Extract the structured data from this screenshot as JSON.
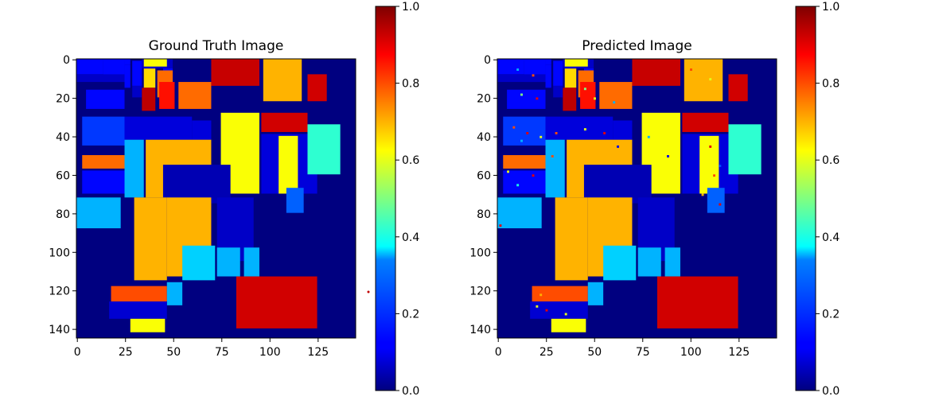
{
  "chart_data": [
    {
      "type": "heatmap",
      "title": "Ground Truth Image",
      "xlabel": "",
      "ylabel": "",
      "xlim": [
        0,
        145
      ],
      "ylim": [
        145,
        0
      ],
      "x_ticks": [
        0,
        25,
        50,
        75,
        100,
        125
      ],
      "y_ticks": [
        0,
        20,
        40,
        60,
        80,
        100,
        120,
        140
      ],
      "colormap": "jet",
      "background_value": 0.0,
      "regions": [
        {
          "x": [
            0,
            14
          ],
          "y": [
            0,
            8
          ],
          "value": 0.13
        },
        {
          "x": [
            14,
            25
          ],
          "y": [
            0,
            12
          ],
          "value": 0.13
        },
        {
          "x": [
            25,
            28
          ],
          "y": [
            0,
            3
          ],
          "value": 0.13
        },
        {
          "x": [
            0,
            25
          ],
          "y": [
            8,
            12
          ],
          "value": 0.07
        },
        {
          "x": [
            25,
            28
          ],
          "y": [
            3,
            15
          ],
          "value": 0.13
        },
        {
          "x": [
            29,
            34
          ],
          "y": [
            1,
            14
          ],
          "value": 0.13
        },
        {
          "x": [
            29,
            34
          ],
          "y": [
            14,
            20
          ],
          "value": 0.07
        },
        {
          "x": [
            35,
            41
          ],
          "y": [
            5,
            15
          ],
          "value": 0.66
        },
        {
          "x": [
            34,
            41
          ],
          "y": [
            15,
            27
          ],
          "value": 0.94
        },
        {
          "x": [
            45,
            50
          ],
          "y": [
            0,
            10
          ],
          "value": 0.13
        },
        {
          "x": [
            34,
            50
          ],
          "y": [
            0,
            5
          ],
          "value": 0.07
        },
        {
          "x": [
            35,
            47
          ],
          "y": [
            0,
            4
          ],
          "value": 0.62
        },
        {
          "x": [
            42,
            50
          ],
          "y": [
            6,
            20
          ],
          "value": 0.77
        },
        {
          "x": [
            43,
            51
          ],
          "y": [
            12,
            26
          ],
          "value": 0.86
        },
        {
          "x": [
            53,
            70
          ],
          "y": [
            12,
            26
          ],
          "value": 0.77
        },
        {
          "x": [
            70,
            95
          ],
          "y": [
            0,
            14
          ],
          "value": 0.93
        },
        {
          "x": [
            97,
            117
          ],
          "y": [
            0,
            22
          ],
          "value": 0.7
        },
        {
          "x": [
            120,
            130
          ],
          "y": [
            8,
            22
          ],
          "value": 0.92
        },
        {
          "x": [
            5,
            25
          ],
          "y": [
            16,
            26
          ],
          "value": 0.13
        },
        {
          "x": [
            3,
            25
          ],
          "y": [
            30,
            45
          ],
          "value": 0.18
        },
        {
          "x": [
            25,
            60
          ],
          "y": [
            30,
            42
          ],
          "value": 0.09
        },
        {
          "x": [
            60,
            70
          ],
          "y": [
            32,
            42
          ],
          "value": 0.09
        },
        {
          "x": [
            75,
            95
          ],
          "y": [
            28,
            70
          ],
          "value": 0.62
        },
        {
          "x": [
            96,
            120
          ],
          "y": [
            28,
            38
          ],
          "value": 0.92
        },
        {
          "x": [
            96,
            125
          ],
          "y": [
            39,
            70
          ],
          "value": 0.09
        },
        {
          "x": [
            105,
            115
          ],
          "y": [
            40,
            70
          ],
          "value": 0.62
        },
        {
          "x": [
            120,
            137
          ],
          "y": [
            34,
            60
          ],
          "value": 0.42
        },
        {
          "x": [
            3,
            25
          ],
          "y": [
            50,
            57
          ],
          "value": 0.77
        },
        {
          "x": [
            3,
            25
          ],
          "y": [
            58,
            70
          ],
          "value": 0.13
        },
        {
          "x": [
            25,
            35
          ],
          "y": [
            42,
            72
          ],
          "value": 0.3
        },
        {
          "x": [
            36,
            70
          ],
          "y": [
            42,
            72
          ],
          "value": 0.7
        },
        {
          "x": [
            45,
            80
          ],
          "y": [
            55,
            75
          ],
          "value": 0.05
        },
        {
          "x": [
            30,
            47
          ],
          "y": [
            72,
            115
          ],
          "value": 0.7
        },
        {
          "x": [
            47,
            70
          ],
          "y": [
            72,
            113
          ],
          "value": 0.7
        },
        {
          "x": [
            73,
            92
          ],
          "y": [
            72,
            105
          ],
          "value": 0.07
        },
        {
          "x": [
            0,
            23
          ],
          "y": [
            72,
            88
          ],
          "value": 0.3
        },
        {
          "x": [
            109,
            118
          ],
          "y": [
            67,
            80
          ],
          "value": 0.22
        },
        {
          "x": [
            55,
            72
          ],
          "y": [
            97,
            115
          ],
          "value": 0.33
        },
        {
          "x": [
            73,
            85
          ],
          "y": [
            98,
            113
          ],
          "value": 0.3
        },
        {
          "x": [
            87,
            95
          ],
          "y": [
            98,
            113
          ],
          "value": 0.3
        },
        {
          "x": [
            18,
            47
          ],
          "y": [
            118,
            126
          ],
          "value": 0.8
        },
        {
          "x": [
            47,
            55
          ],
          "y": [
            116,
            128
          ],
          "value": 0.3
        },
        {
          "x": [
            17,
            47
          ],
          "y": [
            126,
            135
          ],
          "value": 0.08
        },
        {
          "x": [
            28,
            46
          ],
          "y": [
            135,
            142
          ],
          "value": 0.62
        },
        {
          "x": [
            83,
            125
          ],
          "y": [
            113,
            140
          ],
          "value": 0.92
        }
      ],
      "colorbar": {
        "range": [
          0.0,
          1.0
        ],
        "ticks": [
          0.0,
          0.2,
          0.4,
          0.6,
          0.8,
          1.0
        ]
      }
    },
    {
      "type": "heatmap",
      "title": "Predicted Image",
      "xlabel": "",
      "ylabel": "",
      "xlim": [
        0,
        145
      ],
      "ylim": [
        145,
        0
      ],
      "x_ticks": [
        0,
        25,
        50,
        75,
        100,
        125
      ],
      "y_ticks": [
        0,
        20,
        40,
        60,
        80,
        100,
        120,
        140
      ],
      "colormap": "jet",
      "background_value": 0.0,
      "regions_same_as": "Ground Truth Image",
      "noise_pixels": [
        {
          "x": 10,
          "y": 5,
          "value": 0.3
        },
        {
          "x": 18,
          "y": 8,
          "value": 0.8
        },
        {
          "x": 12,
          "y": 18,
          "value": 0.5
        },
        {
          "x": 20,
          "y": 20,
          "value": 0.9
        },
        {
          "x": 8,
          "y": 35,
          "value": 0.8
        },
        {
          "x": 15,
          "y": 38,
          "value": 0.9
        },
        {
          "x": 22,
          "y": 40,
          "value": 0.6
        },
        {
          "x": 12,
          "y": 42,
          "value": 0.3
        },
        {
          "x": 5,
          "y": 58,
          "value": 0.6
        },
        {
          "x": 18,
          "y": 60,
          "value": 0.9
        },
        {
          "x": 10,
          "y": 65,
          "value": 0.4
        },
        {
          "x": 30,
          "y": 38,
          "value": 0.8
        },
        {
          "x": 45,
          "y": 36,
          "value": 0.6
        },
        {
          "x": 55,
          "y": 38,
          "value": 0.9
        },
        {
          "x": 28,
          "y": 50,
          "value": 0.8
        },
        {
          "x": 62,
          "y": 45,
          "value": 0.1
        },
        {
          "x": 78,
          "y": 40,
          "value": 0.3
        },
        {
          "x": 88,
          "y": 50,
          "value": 0.1
        },
        {
          "x": 110,
          "y": 45,
          "value": 0.9
        },
        {
          "x": 115,
          "y": 55,
          "value": 0.2
        },
        {
          "x": 112,
          "y": 60,
          "value": 0.8
        },
        {
          "x": 45,
          "y": 15,
          "value": 0.5
        },
        {
          "x": 50,
          "y": 20,
          "value": 0.6
        },
        {
          "x": 60,
          "y": 22,
          "value": 0.3
        },
        {
          "x": 100,
          "y": 5,
          "value": 0.8
        },
        {
          "x": 110,
          "y": 10,
          "value": 0.6
        },
        {
          "x": 22,
          "y": 122,
          "value": 0.7
        },
        {
          "x": 20,
          "y": 128,
          "value": 0.6
        },
        {
          "x": 25,
          "y": 130,
          "value": 0.9
        },
        {
          "x": 35,
          "y": 132,
          "value": 0.6
        },
        {
          "x": 1,
          "y": 86,
          "value": 0.9
        },
        {
          "x": 106,
          "y": 70,
          "value": 0.7
        },
        {
          "x": 115,
          "y": 75,
          "value": 0.9
        }
      ],
      "colorbar": {
        "range": [
          0.0,
          1.0
        ],
        "ticks": [
          0.0,
          0.2,
          0.4,
          0.6,
          0.8,
          1.0
        ]
      }
    }
  ]
}
